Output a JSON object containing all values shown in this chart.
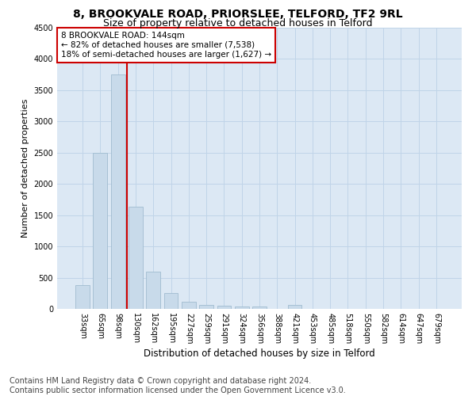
{
  "title1": "8, BROOKVALE ROAD, PRIORSLEE, TELFORD, TF2 9RL",
  "title2": "Size of property relative to detached houses in Telford",
  "xlabel": "Distribution of detached houses by size in Telford",
  "ylabel": "Number of detached properties",
  "categories": [
    "33sqm",
    "65sqm",
    "98sqm",
    "130sqm",
    "162sqm",
    "195sqm",
    "227sqm",
    "259sqm",
    "291sqm",
    "324sqm",
    "356sqm",
    "388sqm",
    "421sqm",
    "453sqm",
    "485sqm",
    "518sqm",
    "550sqm",
    "582sqm",
    "614sqm",
    "647sqm",
    "679sqm"
  ],
  "values": [
    380,
    2500,
    3750,
    1640,
    600,
    250,
    110,
    60,
    45,
    35,
    40,
    0,
    60,
    0,
    0,
    0,
    0,
    0,
    0,
    0,
    0
  ],
  "bar_color": "#c8daea",
  "bar_edge_color": "#a0bcd0",
  "vline_color": "#cc0000",
  "annotation_lines": [
    "8 BROOKVALE ROAD: 144sqm",
    "← 82% of detached houses are smaller (7,538)",
    "18% of semi-detached houses are larger (1,627) →"
  ],
  "annotation_box_color": "#cc0000",
  "ylim": [
    0,
    4500
  ],
  "yticks": [
    0,
    500,
    1000,
    1500,
    2000,
    2500,
    3000,
    3500,
    4000,
    4500
  ],
  "grid_color": "#c0d4e8",
  "bg_color": "#dce8f4",
  "footer": "Contains HM Land Registry data © Crown copyright and database right 2024.\nContains public sector information licensed under the Open Government Licence v3.0.",
  "title1_fontsize": 10,
  "title2_fontsize": 9,
  "xlabel_fontsize": 8.5,
  "ylabel_fontsize": 8,
  "footer_fontsize": 7,
  "tick_fontsize": 7,
  "annotation_fontsize": 7.5
}
